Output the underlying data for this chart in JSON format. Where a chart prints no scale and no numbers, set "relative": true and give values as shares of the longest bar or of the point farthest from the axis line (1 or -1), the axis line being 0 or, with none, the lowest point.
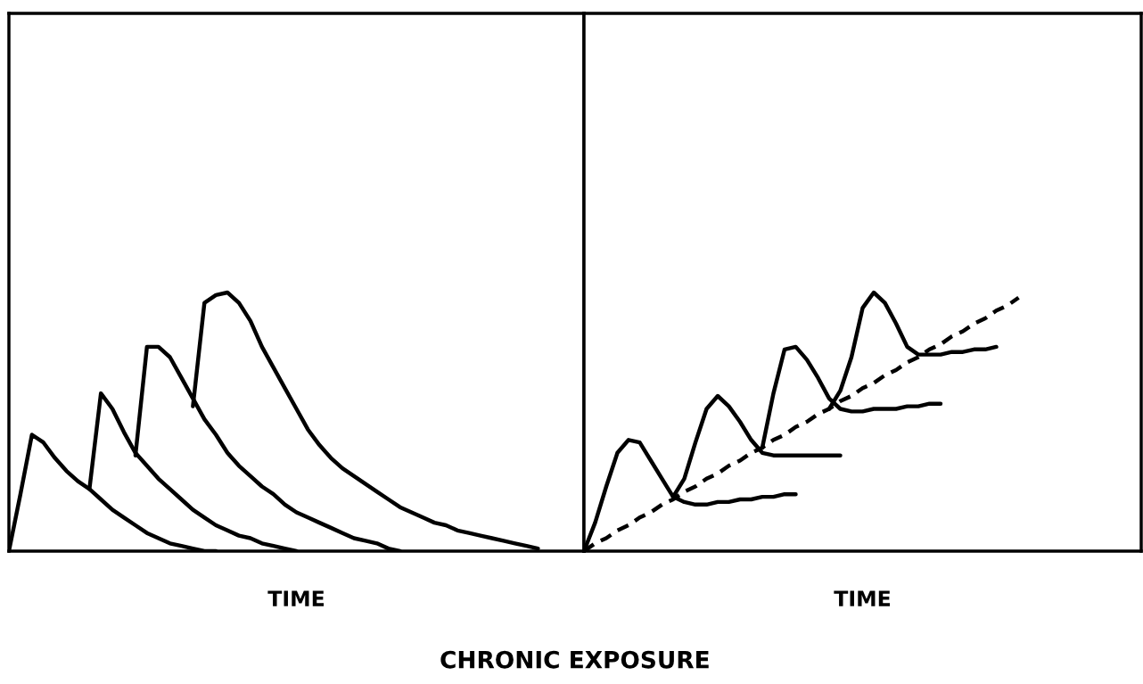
{
  "chart_data": [
    {
      "type": "line",
      "relative": true,
      "xlabel": "TIME",
      "annotations": [
        "CHRONIC EXPOSURE"
      ],
      "categories": [
        null,
        null,
        null,
        null,
        null,
        null,
        null,
        null,
        null,
        null,
        null,
        null,
        null,
        null,
        null,
        null,
        null,
        null,
        null,
        null,
        null,
        null,
        null,
        null,
        null,
        null,
        null,
        null,
        null,
        null,
        null,
        null,
        null,
        null,
        null,
        null,
        null,
        null,
        null,
        null,
        null,
        null,
        null,
        null,
        null,
        null,
        null,
        null,
        null,
        null,
        null
      ],
      "series": [
        {
          "color": "#000000",
          "line_style": "solid",
          "values": [
            0,
            0.22,
            0.45,
            0.42,
            0.36,
            0.31,
            0.27,
            0.24,
            0.2,
            0.16,
            0.13,
            0.1,
            0.07,
            0.05,
            0.03,
            0.02,
            0.01,
            0,
            0,
            null,
            null,
            null,
            null,
            null,
            null,
            null,
            null,
            null,
            null,
            null,
            null,
            null,
            null,
            null,
            null,
            null,
            null,
            null,
            null,
            null,
            null,
            null,
            null,
            null,
            null,
            null,
            null,
            null,
            null,
            null,
            null
          ]
        },
        {
          "color": "#000000",
          "line_style": "solid",
          "values": [
            null,
            null,
            null,
            null,
            null,
            null,
            null,
            0.24,
            0.61,
            0.55,
            0.46,
            0.38,
            0.33,
            0.28,
            0.24,
            0.2,
            0.16,
            0.13,
            0.1,
            0.08,
            0.06,
            0.05,
            0.03,
            0.02,
            0.01,
            0,
            null,
            null,
            null,
            null,
            null,
            null,
            null,
            null,
            null,
            null,
            null,
            null,
            null,
            null,
            null,
            null,
            null,
            null,
            null,
            null,
            null,
            null,
            null,
            null,
            null
          ]
        },
        {
          "color": "#000000",
          "line_style": "solid",
          "values": [
            null,
            null,
            null,
            null,
            null,
            null,
            null,
            null,
            null,
            null,
            null,
            0.37,
            0.79,
            0.79,
            0.75,
            0.67,
            0.59,
            0.51,
            0.45,
            0.38,
            0.33,
            0.29,
            0.25,
            0.22,
            0.18,
            0.15,
            0.13,
            0.11,
            0.09,
            0.07,
            0.05,
            0.04,
            0.03,
            0.01,
            0,
            null,
            null,
            null,
            null,
            null,
            null,
            null,
            null,
            null,
            null,
            null,
            null,
            null,
            null,
            null,
            null
          ]
        },
        {
          "color": "#000000",
          "line_style": "solid",
          "values": [
            null,
            null,
            null,
            null,
            null,
            null,
            null,
            null,
            null,
            null,
            null,
            null,
            null,
            null,
            null,
            null,
            0.56,
            0.96,
            0.99,
            1.0,
            0.96,
            0.89,
            0.79,
            0.71,
            0.63,
            0.55,
            0.47,
            0.41,
            0.36,
            0.32,
            0.29,
            0.26,
            0.23,
            0.2,
            0.17,
            0.15,
            0.13,
            0.11,
            0.1,
            0.08,
            0.07,
            0.06,
            0.05,
            0.04,
            0.03,
            0.02,
            0.01,
            null,
            null,
            null,
            null
          ]
        }
      ]
    },
    {
      "type": "line",
      "relative": true,
      "xlabel": "TIME",
      "categories": [
        null,
        null,
        null,
        null,
        null,
        null,
        null,
        null,
        null,
        null,
        null,
        null,
        null,
        null,
        null,
        null,
        null,
        null,
        null,
        null,
        null,
        null,
        null,
        null,
        null,
        null,
        null,
        null,
        null,
        null,
        null,
        null,
        null,
        null,
        null,
        null,
        null,
        null,
        null,
        null,
        null,
        null,
        null,
        null,
        null,
        null,
        null,
        null,
        null,
        null,
        null
      ],
      "series": [
        {
          "color": "#000000",
          "line_style": "solid",
          "values": [
            0,
            0.11,
            0.25,
            0.38,
            0.43,
            0.42,
            0.35,
            0.28,
            0.21,
            0.19,
            0.18,
            0.18,
            0.19,
            0.19,
            0.2,
            0.2,
            0.21,
            0.21,
            0.22,
            0.22,
            null,
            null,
            null,
            null,
            null,
            null,
            null,
            null,
            null,
            null,
            null,
            null,
            null,
            null,
            null,
            null,
            null,
            null,
            null,
            null,
            null,
            null,
            null,
            null,
            null,
            null,
            null,
            null,
            null,
            null,
            null
          ]
        },
        {
          "color": "#000000",
          "line_style": "solid",
          "values": [
            null,
            null,
            null,
            null,
            null,
            null,
            null,
            null,
            0.21,
            0.28,
            0.42,
            0.55,
            0.6,
            0.56,
            0.5,
            0.43,
            0.38,
            0.37,
            0.37,
            0.37,
            0.37,
            0.37,
            0.37,
            0.37,
            null,
            null,
            null,
            null,
            null,
            null,
            null,
            null,
            null,
            null,
            null,
            null,
            null,
            null,
            null,
            null,
            null,
            null,
            null,
            null,
            null,
            null,
            null,
            null,
            null,
            null,
            null
          ]
        },
        {
          "color": "#000000",
          "line_style": "solid",
          "values": [
            null,
            null,
            null,
            null,
            null,
            null,
            null,
            null,
            null,
            null,
            null,
            null,
            null,
            null,
            null,
            null,
            0.4,
            0.61,
            0.78,
            0.79,
            0.74,
            0.67,
            0.59,
            0.55,
            0.54,
            0.54,
            0.55,
            0.55,
            0.55,
            0.56,
            0.56,
            0.57,
            0.57,
            null,
            null,
            null,
            null,
            null,
            null,
            null,
            null,
            null,
            null,
            null,
            null,
            null,
            null,
            null,
            null,
            null,
            null
          ]
        },
        {
          "color": "#000000",
          "line_style": "solid",
          "values": [
            null,
            null,
            null,
            null,
            null,
            null,
            null,
            null,
            null,
            null,
            null,
            null,
            null,
            null,
            null,
            null,
            null,
            null,
            null,
            null,
            null,
            null,
            0.55,
            0.62,
            0.75,
            0.94,
            1.0,
            0.96,
            0.88,
            0.79,
            0.76,
            0.76,
            0.76,
            0.77,
            0.77,
            0.78,
            0.78,
            0.79,
            null,
            null,
            null,
            null,
            null,
            null,
            null,
            null,
            null,
            null,
            null,
            null,
            null
          ]
        },
        {
          "color": "#000000",
          "line_style": "dashed",
          "values": [
            0,
            0.03,
            0.05,
            0.08,
            0.1,
            0.13,
            0.15,
            0.18,
            0.2,
            0.23,
            0.25,
            0.28,
            0.3,
            0.33,
            0.35,
            0.38,
            0.4,
            0.43,
            0.45,
            0.48,
            0.5,
            0.53,
            0.55,
            0.58,
            0.6,
            0.63,
            0.65,
            0.68,
            0.7,
            0.73,
            0.75,
            0.78,
            0.8,
            0.83,
            0.85,
            0.88,
            0.9,
            0.93,
            0.95,
            0.98,
            null,
            null,
            null,
            null,
            null,
            null,
            null,
            null,
            null,
            null,
            null
          ]
        }
      ]
    }
  ]
}
